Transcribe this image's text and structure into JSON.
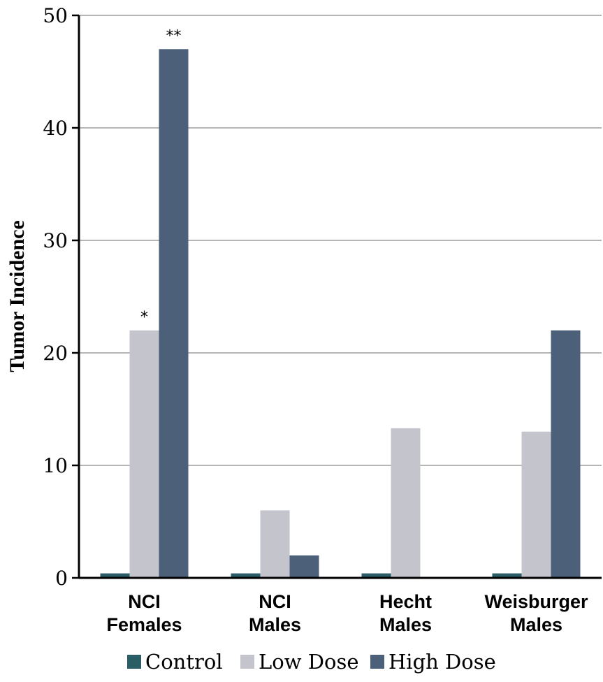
{
  "chart_data": {
    "type": "bar",
    "ylabel": "Tumor Incidence",
    "xlabel": "",
    "ylim": [
      0,
      50
    ],
    "yticks": [
      0,
      10,
      20,
      30,
      40,
      50
    ],
    "grid": true,
    "legend_position": "bottom",
    "categories": [
      [
        "NCI",
        "Females"
      ],
      [
        "NCI",
        "Males"
      ],
      [
        "Hecht",
        "Males"
      ],
      [
        "Weisburger",
        "Males"
      ]
    ],
    "series": [
      {
        "name": "Control",
        "color": "#2b5d66",
        "values": [
          0.4,
          0.4,
          0.4,
          0.4
        ]
      },
      {
        "name": "Low Dose",
        "color": "#c4c5cc",
        "values": [
          22,
          6,
          13.3,
          13
        ]
      },
      {
        "name": "High Dose",
        "color": "#4d607a",
        "values": [
          47,
          2,
          0,
          22
        ]
      }
    ],
    "annotations": [
      {
        "text": "*",
        "category": 0,
        "series": 1
      },
      {
        "text": "**",
        "category": 0,
        "series": 2
      }
    ]
  }
}
